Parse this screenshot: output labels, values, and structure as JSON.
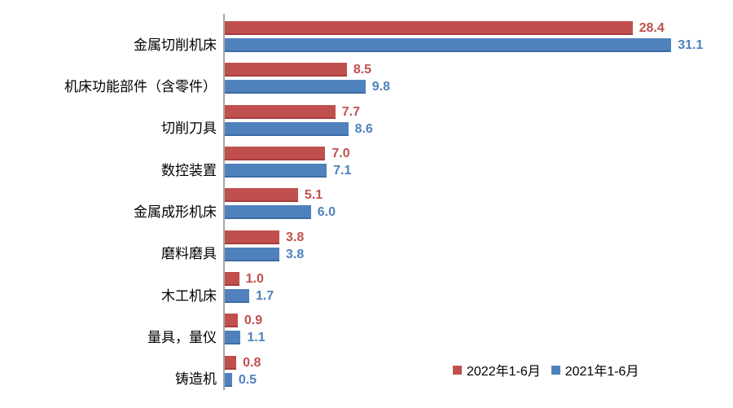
{
  "chart_data": {
    "type": "bar",
    "orientation": "horizontal",
    "title": "",
    "xlabel": "",
    "ylabel": "",
    "categories": [
      "金属切削机床",
      "机床功能部件（含零件）",
      "切削刀具",
      "数控装置",
      "金属成形机床",
      "磨料磨具",
      "木工机床",
      "量具，量仪",
      "铸造机"
    ],
    "series": [
      {
        "name": "2022年1-6月",
        "color": "#c0504d",
        "values": [
          28.4,
          8.5,
          7.7,
          7.0,
          5.1,
          3.8,
          1.0,
          0.9,
          0.8
        ]
      },
      {
        "name": "2021年1-6月",
        "color": "#4f81bd",
        "values": [
          31.1,
          9.8,
          8.6,
          7.1,
          6.0,
          3.8,
          1.7,
          1.1,
          0.5
        ]
      }
    ],
    "xlim": [
      0,
      35.4
    ],
    "value_label_decimals": 1,
    "grid": false,
    "legend_position": "bottom-right",
    "axis_color": "#a6a6a6"
  }
}
